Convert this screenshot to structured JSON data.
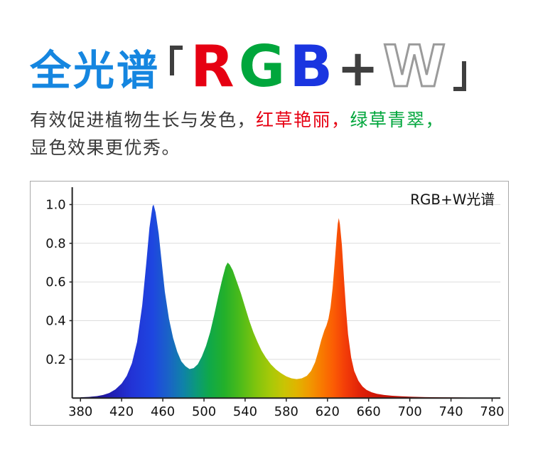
{
  "page": {
    "background": "#ffffff"
  },
  "header": {
    "title_cn": "全光谱",
    "title_color": "#1586e0",
    "bracket_color": "#3f3f3f",
    "bracket_open_icon": "corner-bracket-open",
    "bracket_close_icon": "corner-bracket-close",
    "letters": [
      {
        "char": "R",
        "color": "#e60012"
      },
      {
        "char": "G",
        "color": "#00a63c"
      },
      {
        "char": "B",
        "color": "#1a35e0"
      },
      {
        "char": "+",
        "color": "#3f3f3f"
      },
      {
        "char": "W",
        "color": "#ffffff",
        "outline": "#9b9b9b"
      }
    ]
  },
  "description": {
    "default_color": "#383838",
    "lines": [
      [
        {
          "text": "有效促进植物生长与发色，",
          "color": "#383838"
        },
        {
          "text": "红草艳丽，",
          "color": "#e60012"
        },
        {
          "text": "绿草青翠，",
          "color": "#00a63c"
        }
      ],
      [
        {
          "text": "显色效果更优秀。",
          "color": "#383838"
        }
      ]
    ]
  },
  "chart_data": {
    "type": "area",
    "title": "RGB+W光谱",
    "xlabel": "",
    "ylabel": "",
    "x_range": [
      372,
      788
    ],
    "y_range": [
      0,
      1.09
    ],
    "x_ticks": [
      380,
      420,
      460,
      500,
      540,
      580,
      620,
      660,
      700,
      740,
      780
    ],
    "y_ticks": [
      0.2,
      0.4,
      0.6,
      0.8,
      1.0
    ],
    "grid": true,
    "legend_position": "top-right-inside",
    "grid_color": "#dcdcdc",
    "axis_color": "#222222",
    "frame_color": "#a9a9a9",
    "label_color": "#111111",
    "peaks": [
      {
        "wavelength": 451,
        "intensity": 1.0,
        "band": "blue"
      },
      {
        "wavelength": 523,
        "intensity": 0.7,
        "band": "green"
      },
      {
        "wavelength": 631,
        "intensity": 0.93,
        "band": "red"
      }
    ],
    "points": [
      [
        380,
        0.004
      ],
      [
        388,
        0.006
      ],
      [
        396,
        0.01
      ],
      [
        402,
        0.016
      ],
      [
        408,
        0.026
      ],
      [
        414,
        0.045
      ],
      [
        420,
        0.075
      ],
      [
        425,
        0.115
      ],
      [
        430,
        0.18
      ],
      [
        435,
        0.29
      ],
      [
        440,
        0.48
      ],
      [
        444,
        0.7
      ],
      [
        447,
        0.88
      ],
      [
        450,
        0.99
      ],
      [
        451,
        1.0
      ],
      [
        453,
        0.96
      ],
      [
        456,
        0.85
      ],
      [
        459,
        0.7
      ],
      [
        462,
        0.55
      ],
      [
        466,
        0.41
      ],
      [
        470,
        0.31
      ],
      [
        474,
        0.24
      ],
      [
        478,
        0.19
      ],
      [
        482,
        0.165
      ],
      [
        486,
        0.15
      ],
      [
        490,
        0.155
      ],
      [
        494,
        0.175
      ],
      [
        498,
        0.215
      ],
      [
        502,
        0.27
      ],
      [
        506,
        0.34
      ],
      [
        510,
        0.43
      ],
      [
        514,
        0.53
      ],
      [
        518,
        0.62
      ],
      [
        521,
        0.68
      ],
      [
        523,
        0.7
      ],
      [
        525,
        0.69
      ],
      [
        528,
        0.66
      ],
      [
        532,
        0.6
      ],
      [
        536,
        0.54
      ],
      [
        540,
        0.47
      ],
      [
        544,
        0.4
      ],
      [
        548,
        0.34
      ],
      [
        552,
        0.29
      ],
      [
        556,
        0.245
      ],
      [
        560,
        0.21
      ],
      [
        565,
        0.175
      ],
      [
        570,
        0.148
      ],
      [
        575,
        0.128
      ],
      [
        580,
        0.112
      ],
      [
        585,
        0.102
      ],
      [
        590,
        0.098
      ],
      [
        595,
        0.102
      ],
      [
        600,
        0.115
      ],
      [
        604,
        0.14
      ],
      [
        608,
        0.185
      ],
      [
        611,
        0.24
      ],
      [
        614,
        0.3
      ],
      [
        617,
        0.35
      ],
      [
        619,
        0.375
      ],
      [
        621,
        0.41
      ],
      [
        623,
        0.47
      ],
      [
        625,
        0.57
      ],
      [
        627,
        0.7
      ],
      [
        629,
        0.84
      ],
      [
        630,
        0.9
      ],
      [
        631,
        0.93
      ],
      [
        632,
        0.9
      ],
      [
        634,
        0.79
      ],
      [
        636,
        0.62
      ],
      [
        638,
        0.46
      ],
      [
        640,
        0.33
      ],
      [
        643,
        0.21
      ],
      [
        646,
        0.14
      ],
      [
        650,
        0.09
      ],
      [
        654,
        0.06
      ],
      [
        658,
        0.042
      ],
      [
        663,
        0.03
      ],
      [
        668,
        0.022
      ],
      [
        675,
        0.016
      ],
      [
        683,
        0.012
      ],
      [
        692,
        0.009
      ],
      [
        702,
        0.007
      ],
      [
        715,
        0.005
      ],
      [
        730,
        0.004
      ],
      [
        750,
        0.003
      ],
      [
        770,
        0.002
      ],
      [
        788,
        0.002
      ]
    ],
    "gradient_stops": [
      {
        "wl": 380,
        "color": "#1b1166"
      },
      {
        "wl": 405,
        "color": "#2119a8"
      },
      {
        "wl": 430,
        "color": "#2233d6"
      },
      {
        "wl": 450,
        "color": "#1e46e0"
      },
      {
        "wl": 465,
        "color": "#1a62c8"
      },
      {
        "wl": 480,
        "color": "#0f82a8"
      },
      {
        "wl": 493,
        "color": "#0b9a78"
      },
      {
        "wl": 505,
        "color": "#0fa84a"
      },
      {
        "wl": 520,
        "color": "#23b02a"
      },
      {
        "wl": 535,
        "color": "#4cbb1a"
      },
      {
        "wl": 550,
        "color": "#7ec40e"
      },
      {
        "wl": 565,
        "color": "#a8c908"
      },
      {
        "wl": 578,
        "color": "#c9c404"
      },
      {
        "wl": 590,
        "color": "#e0b400"
      },
      {
        "wl": 602,
        "color": "#f09a00"
      },
      {
        "wl": 614,
        "color": "#f87b00"
      },
      {
        "wl": 626,
        "color": "#fb5c04"
      },
      {
        "wl": 638,
        "color": "#f23b08"
      },
      {
        "wl": 652,
        "color": "#e02208"
      },
      {
        "wl": 670,
        "color": "#cc1406"
      },
      {
        "wl": 700,
        "color": "#b80e05"
      },
      {
        "wl": 788,
        "color": "#a00a04"
      }
    ]
  }
}
